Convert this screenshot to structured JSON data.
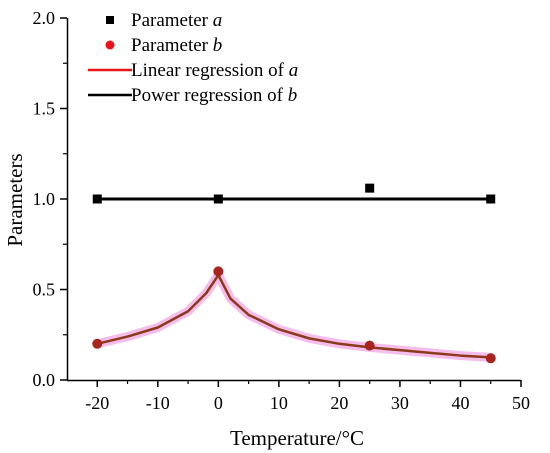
{
  "chart_data": {
    "type": "scatter",
    "xlabel": "Temperature/°C",
    "ylabel": "Parameters",
    "xlim": [
      -25,
      50
    ],
    "ylim": [
      0.0,
      2.0
    ],
    "x_ticks": [
      -20,
      -10,
      0,
      10,
      20,
      30,
      40,
      50
    ],
    "x_tick_labels": [
      "-20",
      "-10",
      "0",
      "10",
      "20",
      "30",
      "40",
      "50"
    ],
    "y_ticks": [
      0.0,
      0.5,
      1.0,
      1.5,
      2.0
    ],
    "y_tick_labels": [
      "0.0",
      "0.5",
      "1.0",
      "1.5",
      "2.0"
    ],
    "grid": false,
    "legend_position": "top-left",
    "series": [
      {
        "name_prefix": "Parameter ",
        "name_var": "a",
        "kind": "scatter",
        "marker": "square",
        "color": "#000000",
        "x": [
          -20,
          0,
          25,
          45
        ],
        "y": [
          1.0,
          1.0,
          1.06,
          1.0
        ]
      },
      {
        "name_prefix": "Parameter ",
        "name_var": "b",
        "kind": "scatter",
        "marker": "circle",
        "color": "#e8151b",
        "x": [
          -20,
          0,
          25,
          45
        ],
        "y": [
          0.2,
          0.6,
          0.19,
          0.12
        ]
      },
      {
        "name_prefix": "Linear regression of ",
        "name_var": "a",
        "kind": "line",
        "color": "#e8151b",
        "x": [
          -20,
          -15,
          -10,
          -5,
          -2,
          0,
          2,
          5,
          10,
          15,
          20,
          25,
          30,
          35,
          40,
          45
        ],
        "y": [
          0.2,
          0.24,
          0.29,
          0.38,
          0.48,
          0.58,
          0.45,
          0.36,
          0.28,
          0.23,
          0.2,
          0.18,
          0.165,
          0.15,
          0.135,
          0.125
        ]
      },
      {
        "name_prefix": "Power regression of ",
        "name_var": "b",
        "kind": "line",
        "color": "#000000",
        "x": [
          -20,
          45
        ],
        "y": [
          1.0,
          1.0
        ]
      }
    ]
  },
  "colors": {
    "axis": "#000000",
    "red": "#e8151b",
    "fit_glow": "#f2a6e6",
    "fit_core": "#8b3a1a",
    "b_point_fill": "#a8241d"
  }
}
